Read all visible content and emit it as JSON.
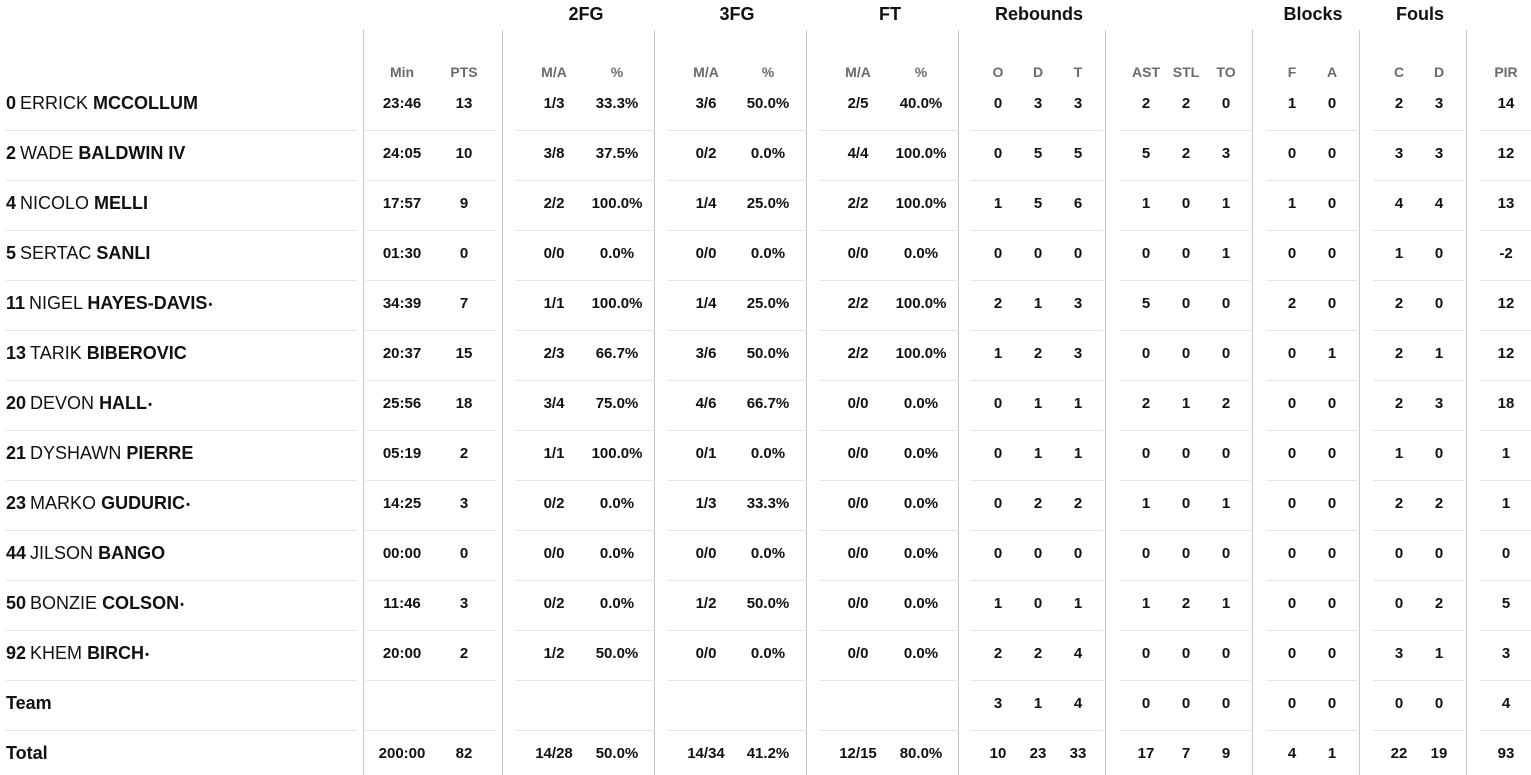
{
  "groups": {
    "fg2": "2FG",
    "fg3": "3FG",
    "ft": "FT",
    "rebounds": "Rebounds",
    "blocks": "Blocks",
    "fouls": "Fouls"
  },
  "columns": {
    "min": "Min",
    "pts": "PTS",
    "fg2_ma": "M/A",
    "fg2_pct": "%",
    "fg3_ma": "M/A",
    "fg3_pct": "%",
    "ft_ma": "M/A",
    "ft_pct": "%",
    "reb_o": "O",
    "reb_d": "D",
    "reb_t": "T",
    "ast": "AST",
    "stl": "STL",
    "to": "TO",
    "blk_f": "F",
    "blk_a": "A",
    "foul_c": "C",
    "foul_d": "D",
    "pir": "PIR"
  },
  "players": [
    {
      "number": "0",
      "first": "ERRICK",
      "last": "MCCOLLUM",
      "starter": "",
      "min": "23:46",
      "pts": "13",
      "fg2_ma": "1/3",
      "fg2_pct": "33.3%",
      "fg3_ma": "3/6",
      "fg3_pct": "50.0%",
      "ft_ma": "2/5",
      "ft_pct": "40.0%",
      "reb_o": "0",
      "reb_d": "3",
      "reb_t": "3",
      "ast": "2",
      "stl": "2",
      "to": "0",
      "blk_f": "1",
      "blk_a": "0",
      "foul_c": "2",
      "foul_d": "3",
      "pir": "14"
    },
    {
      "number": "2",
      "first": "WADE",
      "last": "BALDWIN IV",
      "starter": "",
      "min": "24:05",
      "pts": "10",
      "fg2_ma": "3/8",
      "fg2_pct": "37.5%",
      "fg3_ma": "0/2",
      "fg3_pct": "0.0%",
      "ft_ma": "4/4",
      "ft_pct": "100.0%",
      "reb_o": "0",
      "reb_d": "5",
      "reb_t": "5",
      "ast": "5",
      "stl": "2",
      "to": "3",
      "blk_f": "0",
      "blk_a": "0",
      "foul_c": "3",
      "foul_d": "3",
      "pir": "12"
    },
    {
      "number": "4",
      "first": "NICOLO",
      "last": "MELLI",
      "starter": "",
      "min": "17:57",
      "pts": "9",
      "fg2_ma": "2/2",
      "fg2_pct": "100.0%",
      "fg3_ma": "1/4",
      "fg3_pct": "25.0%",
      "ft_ma": "2/2",
      "ft_pct": "100.0%",
      "reb_o": "1",
      "reb_d": "5",
      "reb_t": "6",
      "ast": "1",
      "stl": "0",
      "to": "1",
      "blk_f": "1",
      "blk_a": "0",
      "foul_c": "4",
      "foul_d": "4",
      "pir": "13"
    },
    {
      "number": "5",
      "first": "SERTAC",
      "last": "SANLI",
      "starter": "",
      "min": "01:30",
      "pts": "0",
      "fg2_ma": "0/0",
      "fg2_pct": "0.0%",
      "fg3_ma": "0/0",
      "fg3_pct": "0.0%",
      "ft_ma": "0/0",
      "ft_pct": "0.0%",
      "reb_o": "0",
      "reb_d": "0",
      "reb_t": "0",
      "ast": "0",
      "stl": "0",
      "to": "1",
      "blk_f": "0",
      "blk_a": "0",
      "foul_c": "1",
      "foul_d": "0",
      "pir": "-2"
    },
    {
      "number": "11",
      "first": "NIGEL",
      "last": "HAYES-DAVIS",
      "starter": "•",
      "min": "34:39",
      "pts": "7",
      "fg2_ma": "1/1",
      "fg2_pct": "100.0%",
      "fg3_ma": "1/4",
      "fg3_pct": "25.0%",
      "ft_ma": "2/2",
      "ft_pct": "100.0%",
      "reb_o": "2",
      "reb_d": "1",
      "reb_t": "3",
      "ast": "5",
      "stl": "0",
      "to": "0",
      "blk_f": "2",
      "blk_a": "0",
      "foul_c": "2",
      "foul_d": "0",
      "pir": "12"
    },
    {
      "number": "13",
      "first": "TARIK",
      "last": "BIBEROVIC",
      "starter": "",
      "min": "20:37",
      "pts": "15",
      "fg2_ma": "2/3",
      "fg2_pct": "66.7%",
      "fg3_ma": "3/6",
      "fg3_pct": "50.0%",
      "ft_ma": "2/2",
      "ft_pct": "100.0%",
      "reb_o": "1",
      "reb_d": "2",
      "reb_t": "3",
      "ast": "0",
      "stl": "0",
      "to": "0",
      "blk_f": "0",
      "blk_a": "1",
      "foul_c": "2",
      "foul_d": "1",
      "pir": "12"
    },
    {
      "number": "20",
      "first": "DEVON",
      "last": "HALL",
      "starter": "•",
      "min": "25:56",
      "pts": "18",
      "fg2_ma": "3/4",
      "fg2_pct": "75.0%",
      "fg3_ma": "4/6",
      "fg3_pct": "66.7%",
      "ft_ma": "0/0",
      "ft_pct": "0.0%",
      "reb_o": "0",
      "reb_d": "1",
      "reb_t": "1",
      "ast": "2",
      "stl": "1",
      "to": "2",
      "blk_f": "0",
      "blk_a": "0",
      "foul_c": "2",
      "foul_d": "3",
      "pir": "18"
    },
    {
      "number": "21",
      "first": "DYSHAWN",
      "last": "PIERRE",
      "starter": "",
      "min": "05:19",
      "pts": "2",
      "fg2_ma": "1/1",
      "fg2_pct": "100.0%",
      "fg3_ma": "0/1",
      "fg3_pct": "0.0%",
      "ft_ma": "0/0",
      "ft_pct": "0.0%",
      "reb_o": "0",
      "reb_d": "1",
      "reb_t": "1",
      "ast": "0",
      "stl": "0",
      "to": "0",
      "blk_f": "0",
      "blk_a": "0",
      "foul_c": "1",
      "foul_d": "0",
      "pir": "1"
    },
    {
      "number": "23",
      "first": "MARKO",
      "last": "GUDURIC",
      "starter": "•",
      "min": "14:25",
      "pts": "3",
      "fg2_ma": "0/2",
      "fg2_pct": "0.0%",
      "fg3_ma": "1/3",
      "fg3_pct": "33.3%",
      "ft_ma": "0/0",
      "ft_pct": "0.0%",
      "reb_o": "0",
      "reb_d": "2",
      "reb_t": "2",
      "ast": "1",
      "stl": "0",
      "to": "1",
      "blk_f": "0",
      "blk_a": "0",
      "foul_c": "2",
      "foul_d": "2",
      "pir": "1"
    },
    {
      "number": "44",
      "first": "JILSON",
      "last": "BANGO",
      "starter": "",
      "min": "00:00",
      "pts": "0",
      "fg2_ma": "0/0",
      "fg2_pct": "0.0%",
      "fg3_ma": "0/0",
      "fg3_pct": "0.0%",
      "ft_ma": "0/0",
      "ft_pct": "0.0%",
      "reb_o": "0",
      "reb_d": "0",
      "reb_t": "0",
      "ast": "0",
      "stl": "0",
      "to": "0",
      "blk_f": "0",
      "blk_a": "0",
      "foul_c": "0",
      "foul_d": "0",
      "pir": "0"
    },
    {
      "number": "50",
      "first": "BONZIE",
      "last": "COLSON",
      "starter": "•",
      "min": "11:46",
      "pts": "3",
      "fg2_ma": "0/2",
      "fg2_pct": "0.0%",
      "fg3_ma": "1/2",
      "fg3_pct": "50.0%",
      "ft_ma": "0/0",
      "ft_pct": "0.0%",
      "reb_o": "1",
      "reb_d": "0",
      "reb_t": "1",
      "ast": "1",
      "stl": "2",
      "to": "1",
      "blk_f": "0",
      "blk_a": "0",
      "foul_c": "0",
      "foul_d": "2",
      "pir": "5"
    },
    {
      "number": "92",
      "first": "KHEM",
      "last": "BIRCH",
      "starter": "•",
      "min": "20:00",
      "pts": "2",
      "fg2_ma": "1/2",
      "fg2_pct": "50.0%",
      "fg3_ma": "0/0",
      "fg3_pct": "0.0%",
      "ft_ma": "0/0",
      "ft_pct": "0.0%",
      "reb_o": "2",
      "reb_d": "2",
      "reb_t": "4",
      "ast": "0",
      "stl": "0",
      "to": "0",
      "blk_f": "0",
      "blk_a": "0",
      "foul_c": "3",
      "foul_d": "1",
      "pir": "3"
    }
  ],
  "team": {
    "label": "Team",
    "min": "",
    "pts": "",
    "fg2_ma": "",
    "fg2_pct": "",
    "fg3_ma": "",
    "fg3_pct": "",
    "ft_ma": "",
    "ft_pct": "",
    "reb_o": "3",
    "reb_d": "1",
    "reb_t": "4",
    "ast": "0",
    "stl": "0",
    "to": "0",
    "blk_f": "0",
    "blk_a": "0",
    "foul_c": "0",
    "foul_d": "0",
    "pir": "4"
  },
  "total": {
    "label": "Total",
    "min": "200:00",
    "pts": "82",
    "fg2_ma": "14/28",
    "fg2_pct": "50.0%",
    "fg3_ma": "14/34",
    "fg3_pct": "41.2%",
    "ft_ma": "12/15",
    "ft_pct": "80.0%",
    "reb_o": "10",
    "reb_d": "23",
    "reb_t": "33",
    "ast": "17",
    "stl": "7",
    "to": "9",
    "blk_f": "4",
    "blk_a": "1",
    "foul_c": "22",
    "foul_d": "19",
    "pir": "93"
  }
}
